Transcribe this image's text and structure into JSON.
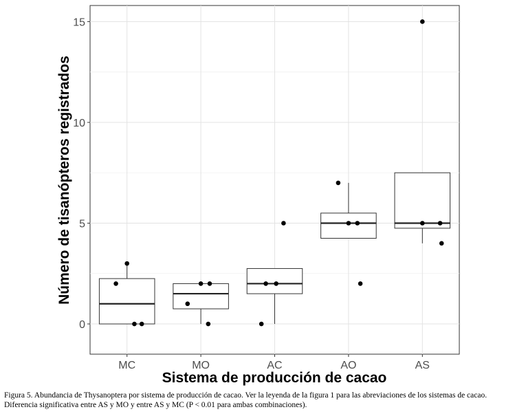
{
  "chart_data": {
    "type": "box",
    "xlabel": "Sistema de producción de cacao",
    "ylabel": "Número de tisanópteros registrados",
    "categories": [
      "MC",
      "MO",
      "AC",
      "AO",
      "AS"
    ],
    "ylim": [
      -1.5,
      15.8
    ],
    "yticks": [
      0,
      5,
      10,
      15
    ],
    "grid": true,
    "boxes": [
      {
        "category": "MC",
        "min": 0,
        "q1": 0,
        "median": 1,
        "q3": 2.25,
        "max": 3
      },
      {
        "category": "MO",
        "min": 0,
        "q1": 0.75,
        "median": 1.5,
        "q3": 2,
        "max": 2
      },
      {
        "category": "AC",
        "min": 0,
        "q1": 1.5,
        "median": 2,
        "q3": 2.75,
        "max": 2.75
      },
      {
        "category": "AO",
        "min": 4.25,
        "q1": 4.25,
        "median": 5,
        "q3": 5.5,
        "max": 7
      },
      {
        "category": "AS",
        "min": 4,
        "q1": 4.75,
        "median": 5,
        "q3": 7.5,
        "max": 7.5
      }
    ],
    "points": [
      {
        "category": "MC",
        "values": [
          3,
          2,
          0,
          0
        ],
        "offsets": [
          0.0,
          -0.15,
          0.1,
          0.2
        ]
      },
      {
        "category": "MO",
        "values": [
          2,
          2,
          1,
          0
        ],
        "offsets": [
          0.0,
          0.12,
          -0.18,
          0.1
        ]
      },
      {
        "category": "AC",
        "values": [
          5,
          2,
          2,
          0
        ],
        "offsets": [
          0.12,
          -0.12,
          0.02,
          -0.18
        ]
      },
      {
        "category": "AO",
        "values": [
          7,
          5,
          5,
          2
        ],
        "offsets": [
          -0.14,
          0.0,
          0.12,
          0.16
        ]
      },
      {
        "category": "AS",
        "values": [
          15,
          5,
          5,
          4
        ],
        "offsets": [
          0.0,
          0.0,
          0.24,
          0.26
        ]
      }
    ]
  },
  "caption": {
    "text": "Figura 5. Abundancia de Thysanoptera por sistema de producción de cacao. Ver la leyenda de la figura 1 para las abreviaciones de los sistemas de cacao. Diferencia significativa entre AS y MO y entre AS y MC (P < 0.01 para ambas combinaciones)."
  }
}
